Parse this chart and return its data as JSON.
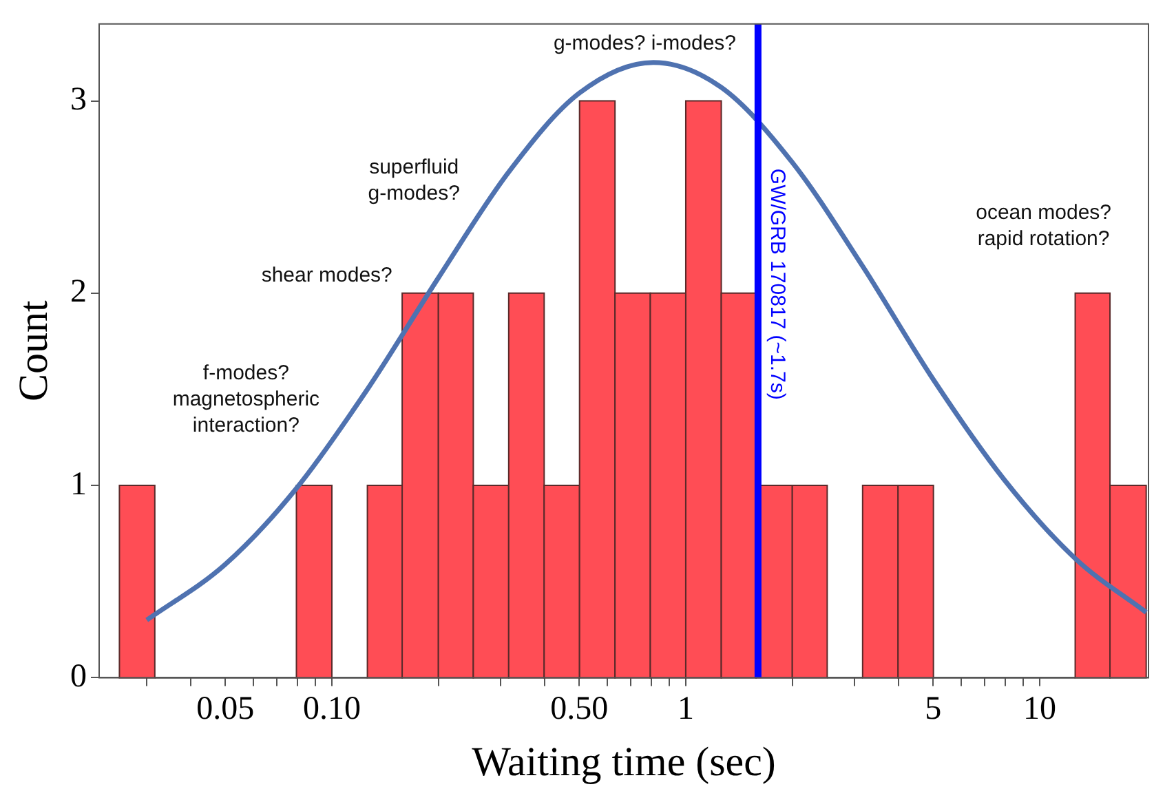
{
  "chart_data": {
    "type": "histogram",
    "xlabel": "Waiting time (sec)",
    "ylabel": "Count",
    "log": "x",
    "grid": false,
    "legend": false,
    "bins": [
      0.0251,
      0.0316,
      0.0794,
      0.1,
      0.126,
      0.158,
      0.2,
      0.251,
      0.316,
      0.398,
      0.501,
      0.631,
      0.794,
      1,
      1.26,
      1.58,
      2,
      2.51,
      3.16,
      3.98,
      5.01,
      12.6,
      15.8,
      20
    ],
    "values": [
      1,
      0,
      1,
      0,
      1,
      2,
      2,
      1,
      2,
      1,
      3,
      2,
      2,
      3,
      2,
      1,
      1,
      0,
      1,
      1,
      0,
      2,
      1
    ],
    "color": "#ff4d55",
    "series": [
      {
        "type": "line",
        "color": "#4f72b0",
        "x": [
          0.03,
          0.05,
          0.079,
          0.126,
          0.2,
          0.316,
          0.5,
          0.81,
          1.26,
          2,
          3.16,
          5.01,
          7.94,
          12.6,
          20
        ],
        "values": [
          0.3,
          0.59,
          0.98,
          1.5,
          2.08,
          2.63,
          3.04,
          3.2,
          3.07,
          2.68,
          2.14,
          1.55,
          1.03,
          0.62,
          0.34
        ]
      }
    ],
    "xlim": [
      0.022,
      20.3
    ],
    "ylim": [
      0,
      3.4
    ],
    "xticks": [
      {
        "value": 0.03,
        "label": null
      },
      {
        "value": 0.04,
        "label": null
      },
      0.05,
      {
        "value": 0.06,
        "label": null
      },
      {
        "value": 0.07,
        "label": null
      },
      {
        "value": 0.08,
        "label": null
      },
      {
        "value": 0.09,
        "label": null
      },
      {
        "value": 0.1,
        "label": "0.10"
      },
      {
        "value": 0.2,
        "label": null
      },
      {
        "value": 0.3,
        "label": null
      },
      {
        "value": 0.4,
        "label": null
      },
      {
        "value": 0.5,
        "label": "0.50"
      },
      {
        "value": 0.6,
        "label": null
      },
      {
        "value": 0.7,
        "label": null
      },
      {
        "value": 0.8,
        "label": null
      },
      {
        "value": 0.9,
        "label": null
      },
      1,
      {
        "value": 2,
        "label": null
      },
      {
        "value": 3,
        "label": null
      },
      {
        "value": 4,
        "label": null
      },
      5,
      {
        "value": 6,
        "label": null
      },
      {
        "value": 7,
        "label": null
      },
      {
        "value": 8,
        "label": null
      },
      {
        "value": 9,
        "label": null
      },
      10
    ],
    "yticks": [
      0,
      1,
      2,
      3
    ],
    "ref_lines": [
      {
        "axis": "x",
        "value": 1.6,
        "label": "GW/GRB 170817 (~1.7s)",
        "color": "#0000ff"
      }
    ],
    "annotations": [
      "f-modes?\nmagnetospheric\ninteraction?",
      "shear modes?",
      "superfluid\ng-modes?",
      "g-modes? i-modes?",
      "ocean modes?\nrapid rotation?"
    ]
  }
}
